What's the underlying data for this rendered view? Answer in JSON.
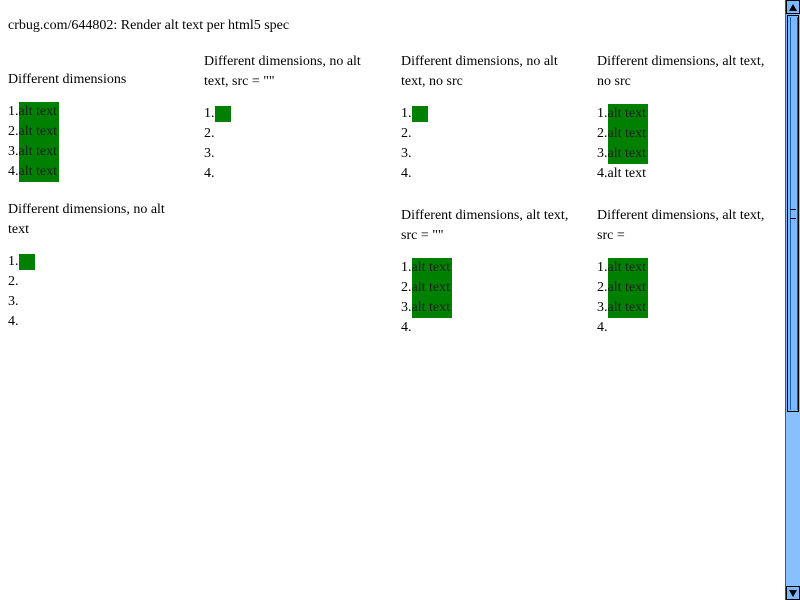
{
  "header": {
    "title": "crbug.com/644802: Render alt text per html5 spec"
  },
  "list_numbers": [
    "1.",
    "2.",
    "3.",
    "4."
  ],
  "alt_text": "alt text",
  "cases": {
    "c1": {
      "title": "Different dimensions"
    },
    "c2": {
      "title": "Different dimensions, no alt text, src = \"\""
    },
    "c3": {
      "title": "Different dimensions, no alt text, no src"
    },
    "c4": {
      "title": "Different dimensions, alt text, no src"
    },
    "c5": {
      "title": "Different dimensions, no alt text"
    },
    "c6": {
      "title": "Different dimensions, alt text, src = \"\""
    },
    "c7": {
      "title": "Different dimensions, alt text, src ="
    }
  },
  "colors": {
    "image_placeholder": "#008000",
    "scrollbar": "#7bb8ff"
  },
  "scrollbar": {
    "up_icon": "arrow-up-icon",
    "down_icon": "arrow-down-icon"
  }
}
